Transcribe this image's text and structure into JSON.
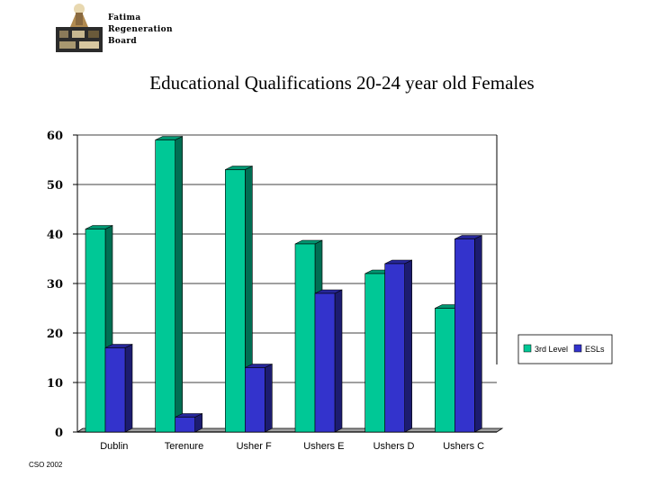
{
  "header": {
    "logo_lines": [
      "Fatima",
      "Regeneration",
      "Board"
    ]
  },
  "footer": {
    "source": "CSO 2002"
  },
  "colors": {
    "series1": "#00c896",
    "series2": "#3333cc"
  },
  "chart_data": {
    "type": "bar",
    "title": "Educational Qualifications 20-24 year old Females",
    "categories": [
      "Dublin",
      "Terenure",
      "Usher F",
      "Ushers E",
      "Ushers D",
      "Ushers C"
    ],
    "series": [
      {
        "name": "3rd Level",
        "values": [
          41,
          59,
          53,
          38,
          32,
          25
        ]
      },
      {
        "name": "ESLs",
        "values": [
          17,
          3,
          13,
          28,
          34,
          39
        ]
      }
    ],
    "ylim": [
      0,
      60
    ],
    "yticks": [
      "0",
      "10",
      "20",
      "30",
      "40",
      "50",
      "60"
    ],
    "grid": true,
    "legend": "right",
    "xlabel": "",
    "ylabel": ""
  }
}
